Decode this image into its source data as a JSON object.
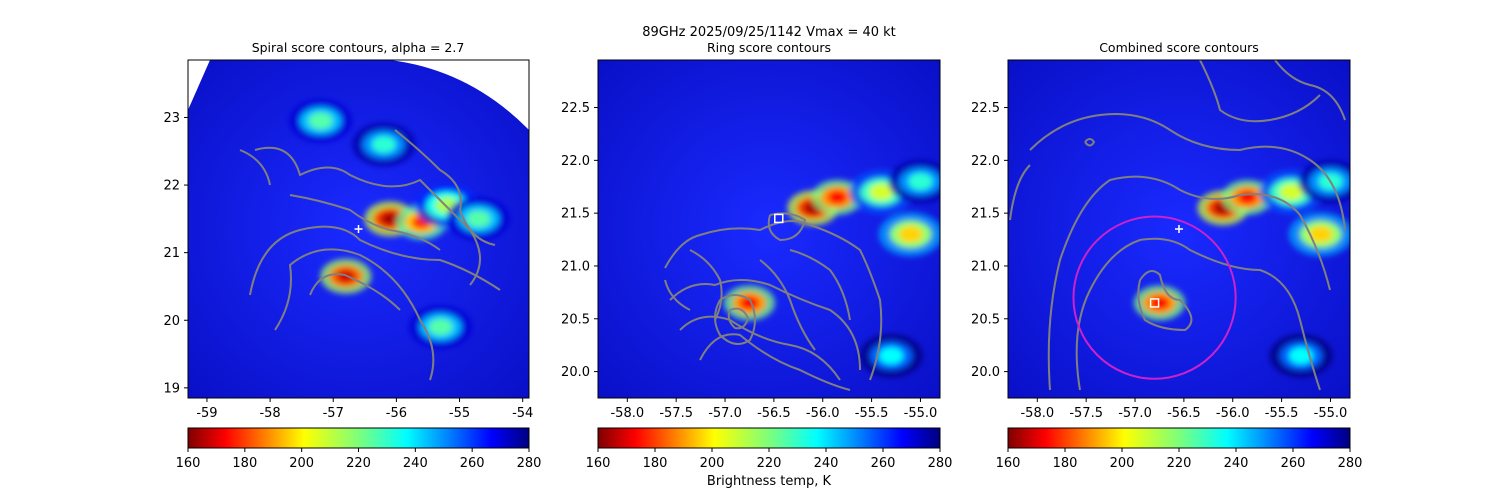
{
  "figure": {
    "suptitle_line1": "89GHz  2025/09/25/1142    Vmax = 40 kt",
    "colorbar_label": "Brightness temp, K"
  },
  "chart_data": [
    {
      "type": "heatmap",
      "title": "Spiral score contours, alpha =  2.7",
      "xlabel": "",
      "ylabel": "",
      "xlim": [
        -59.3,
        -53.9
      ],
      "ylim": [
        18.85,
        23.85
      ],
      "xticks": [
        "-59",
        "-58",
        "-57",
        "-56",
        "-55",
        "-54"
      ],
      "xtick_values": [
        -59,
        -58,
        -57,
        -56,
        -55,
        -54
      ],
      "yticks": [
        "19",
        "20",
        "21",
        "22",
        "23"
      ],
      "ytick_values": [
        19,
        20,
        21,
        22,
        23
      ],
      "colormap": "jet_r",
      "clim": [
        160,
        280
      ],
      "colorbar_ticks": [
        "160",
        "180",
        "200",
        "220",
        "240",
        "260",
        "280"
      ],
      "background_tb": 268,
      "cold_features_tb": [
        {
          "lon": -56.1,
          "lat": 21.5,
          "tb": 165
        },
        {
          "lon": -55.6,
          "lat": 21.45,
          "tb": 180
        },
        {
          "lon": -55.2,
          "lat": 21.7,
          "tb": 215
        },
        {
          "lon": -54.7,
          "lat": 21.5,
          "tb": 225
        },
        {
          "lon": -56.8,
          "lat": 20.65,
          "tb": 170
        },
        {
          "lon": -57.2,
          "lat": 22.95,
          "tb": 225
        },
        {
          "lon": -56.2,
          "lat": 22.6,
          "tb": 230
        },
        {
          "lon": -55.3,
          "lat": 19.9,
          "tb": 225
        }
      ],
      "markers": [
        {
          "symbol": "+",
          "lon": -56.6,
          "lat": 21.35,
          "color": "#ffffff"
        }
      ],
      "contour_color": "#808080"
    },
    {
      "type": "heatmap",
      "title": "Ring score contours",
      "xlabel": "",
      "ylabel": "",
      "xlim": [
        -58.3,
        -54.8
      ],
      "ylim": [
        19.75,
        22.95
      ],
      "xticks": [
        "-58.0",
        "-57.5",
        "-57.0",
        "-56.5",
        "-56.0",
        "-55.5",
        "-55.0"
      ],
      "xtick_values": [
        -58.0,
        -57.5,
        -57.0,
        -56.5,
        -56.0,
        -55.5,
        -55.0
      ],
      "yticks": [
        "20.0",
        "20.5",
        "21.0",
        "21.5",
        "22.0",
        "22.5"
      ],
      "ytick_values": [
        20.0,
        20.5,
        21.0,
        21.5,
        22.0,
        22.5
      ],
      "colormap": "jet_r",
      "clim": [
        160,
        280
      ],
      "colorbar_ticks": [
        "160",
        "180",
        "200",
        "220",
        "240",
        "260",
        "280"
      ],
      "background_tb": 268,
      "cold_features_tb": [
        {
          "lon": -56.1,
          "lat": 21.55,
          "tb": 165
        },
        {
          "lon": -55.85,
          "lat": 21.65,
          "tb": 175
        },
        {
          "lon": -55.4,
          "lat": 21.7,
          "tb": 210
        },
        {
          "lon": -55.1,
          "lat": 21.3,
          "tb": 200
        },
        {
          "lon": -55.0,
          "lat": 21.8,
          "tb": 230
        },
        {
          "lon": -56.75,
          "lat": 20.65,
          "tb": 175
        },
        {
          "lon": -55.3,
          "lat": 20.15,
          "tb": 235
        }
      ],
      "markers": [
        {
          "symbol": "square",
          "lon": -56.45,
          "lat": 21.45,
          "color": "#ffffff"
        }
      ],
      "contour_color": "#808080"
    },
    {
      "type": "heatmap",
      "title": "Combined score contours",
      "xlabel": "",
      "ylabel": "",
      "xlim": [
        -58.3,
        -54.8
      ],
      "ylim": [
        19.75,
        22.95
      ],
      "xticks": [
        "-58.0",
        "-57.5",
        "-57.0",
        "-56.5",
        "-56.0",
        "-55.5",
        "-55.0"
      ],
      "xtick_values": [
        -58.0,
        -57.5,
        -57.0,
        -56.5,
        -56.0,
        -55.5,
        -55.0
      ],
      "yticks": [
        "20.0",
        "20.5",
        "21.0",
        "21.5",
        "22.0",
        "22.5"
      ],
      "ytick_values": [
        20.0,
        20.5,
        21.0,
        21.5,
        22.0,
        22.5
      ],
      "colormap": "jet_r",
      "clim": [
        160,
        280
      ],
      "colorbar_ticks": [
        "160",
        "180",
        "200",
        "220",
        "240",
        "260",
        "280"
      ],
      "background_tb": 268,
      "cold_features_tb": [
        {
          "lon": -56.1,
          "lat": 21.55,
          "tb": 165
        },
        {
          "lon": -55.85,
          "lat": 21.65,
          "tb": 175
        },
        {
          "lon": -55.4,
          "lat": 21.7,
          "tb": 210
        },
        {
          "lon": -55.1,
          "lat": 21.3,
          "tb": 200
        },
        {
          "lon": -55.0,
          "lat": 21.8,
          "tb": 230
        },
        {
          "lon": -56.75,
          "lat": 20.65,
          "tb": 175
        },
        {
          "lon": -55.3,
          "lat": 20.15,
          "tb": 235
        }
      ],
      "markers": [
        {
          "symbol": "+",
          "lon": -56.55,
          "lat": 21.35,
          "color": "#ffffff"
        },
        {
          "symbol": "square",
          "lon": -56.8,
          "lat": 20.65,
          "color": "#ffffff"
        }
      ],
      "circle": {
        "lon": -56.8,
        "lat": 20.7,
        "radius_deg": 0.83,
        "color": "#cc22cc"
      },
      "contour_color": "#808080"
    }
  ]
}
